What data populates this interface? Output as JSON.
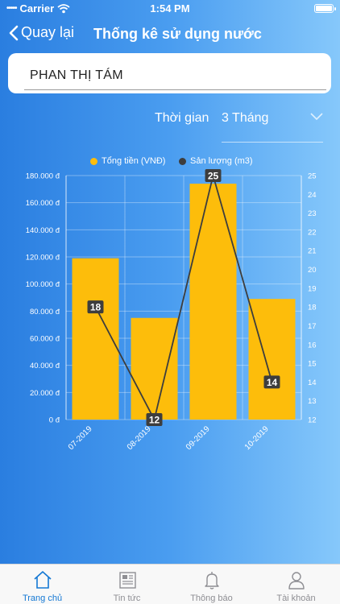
{
  "status_bar": {
    "carrier": "Carrier",
    "time": "1:54 PM"
  },
  "nav": {
    "back_label": "Quay lại",
    "title": "Thống kê sử dụng nước"
  },
  "customer": {
    "name": "PHAN THỊ TÁM"
  },
  "period": {
    "label": "Thời gian",
    "value": "3 Tháng"
  },
  "legend": {
    "left": "Tổng tiền (VNĐ)",
    "right": "Sản lượng (m3)"
  },
  "colors": {
    "bar": "#fdbd0b",
    "line": "#3d3d3d",
    "active_tab": "#1478d4",
    "inactive_tab": "#8e8e93"
  },
  "chart_data": {
    "type": "bar",
    "categories": [
      "07-2019",
      "08-2019",
      "09-2019",
      "10-2019"
    ],
    "series": [
      {
        "name": "Tổng tiền (VNĐ)",
        "type": "bar",
        "axis": "left",
        "values": [
          119000,
          75000,
          174000,
          89000
        ]
      },
      {
        "name": "Sản lượng (m3)",
        "type": "line",
        "axis": "right",
        "values": [
          18,
          12,
          25,
          14
        ],
        "labels": [
          "18",
          "12",
          "25",
          "14"
        ]
      }
    ],
    "y_left": {
      "ylim": [
        0,
        180000
      ],
      "ticks": [
        0,
        20000,
        40000,
        60000,
        80000,
        100000,
        120000,
        140000,
        160000,
        180000
      ],
      "tick_labels": [
        "0 đ",
        "20.000 đ",
        "40.000 đ",
        "60.000 đ",
        "80.000 đ",
        "100.000 đ",
        "120.000 đ",
        "140.000 đ",
        "160.000 đ",
        "180.000 đ"
      ]
    },
    "y_right": {
      "ylim": [
        12,
        25
      ],
      "ticks": [
        12,
        13,
        14,
        15,
        16,
        17,
        18,
        19,
        20,
        21,
        22,
        23,
        24,
        25
      ],
      "tick_labels": [
        "12",
        "13",
        "14",
        "15",
        "16",
        "17",
        "18",
        "19",
        "20",
        "21",
        "22",
        "23",
        "24",
        "25"
      ]
    },
    "grid": true,
    "legend_position": "top"
  },
  "tabs": [
    {
      "label": "Trang chủ",
      "icon": "home-icon",
      "active": true
    },
    {
      "label": "Tin tức",
      "icon": "news-icon",
      "active": false
    },
    {
      "label": "Thông báo",
      "icon": "bell-icon",
      "active": false
    },
    {
      "label": "Tài khoản",
      "icon": "user-icon",
      "active": false
    }
  ]
}
